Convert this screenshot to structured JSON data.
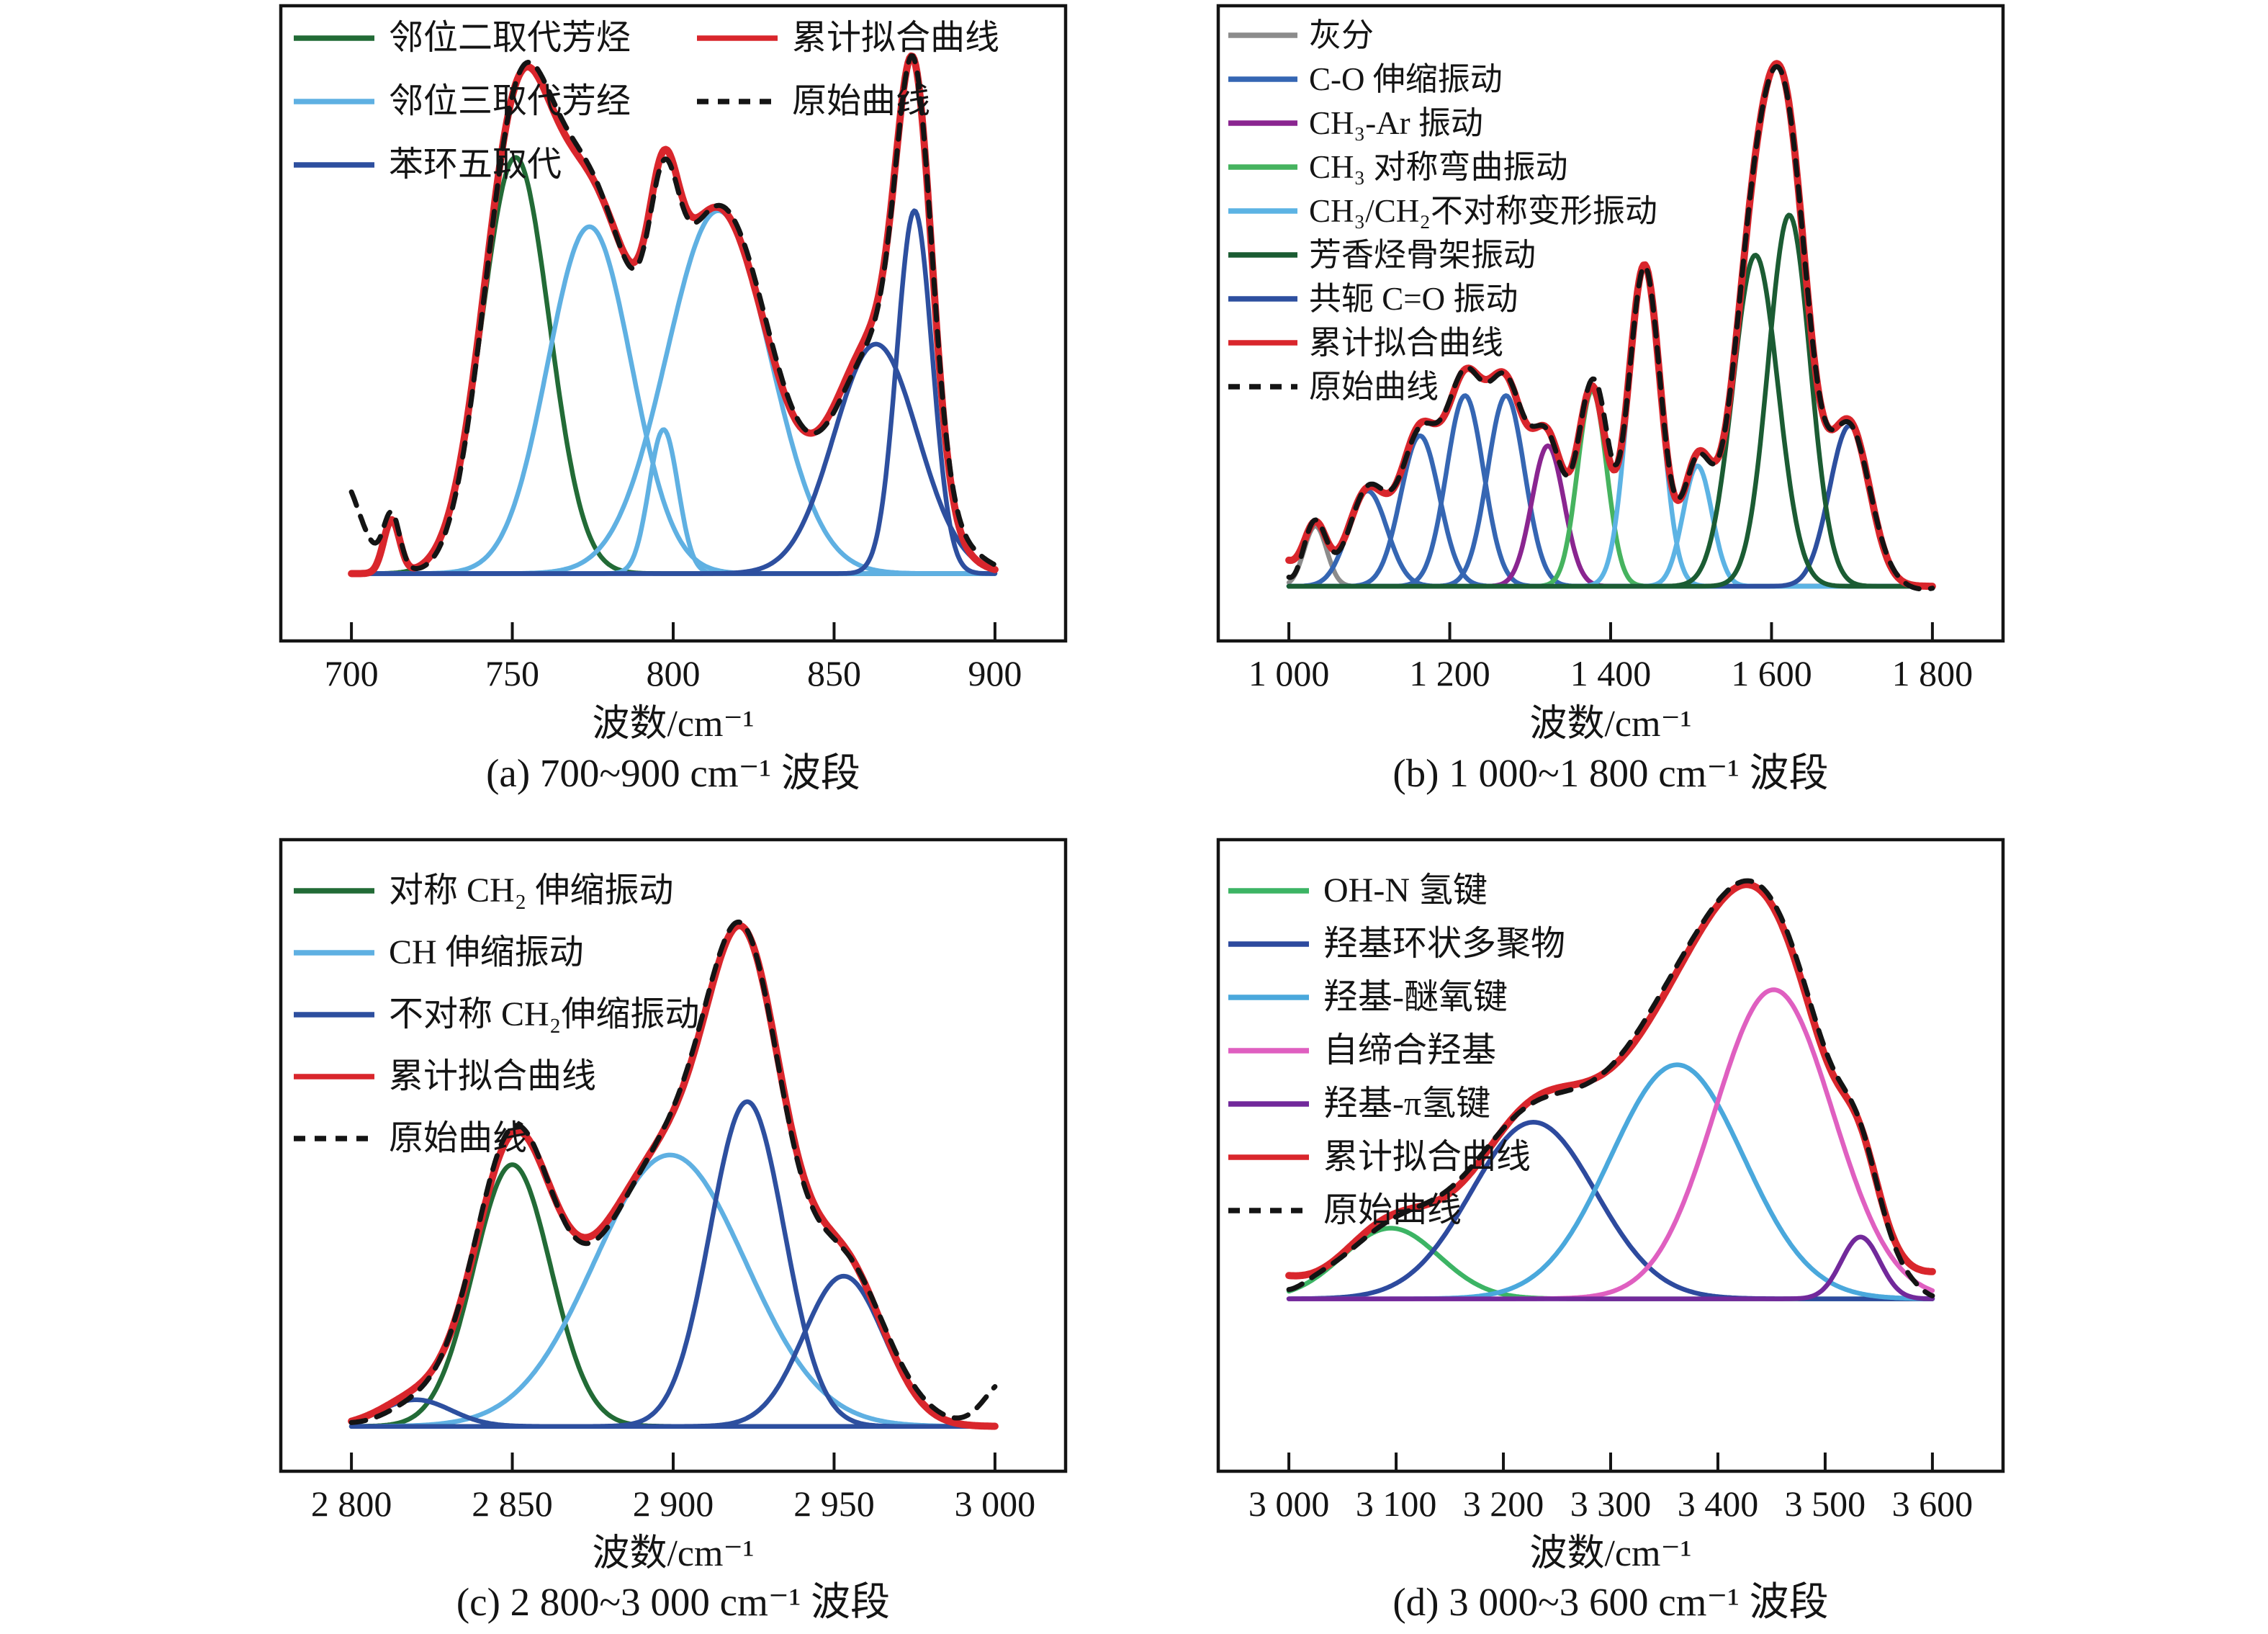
{
  "figure": {
    "background": "#ffffff",
    "description": "FTIR 分峰拟合曲线四联图"
  },
  "chart_data": [
    {
      "id": "a",
      "type": "line",
      "caption": "(a) 700~900 cm⁻¹ 波段",
      "xlabel": "波数/cm⁻¹",
      "xmin": 700,
      "xmax": 900,
      "ticks": [
        700,
        750,
        800,
        850,
        900
      ],
      "tick_labels": [
        "700",
        "750",
        "800",
        "850",
        "900"
      ],
      "grid": false,
      "legend_position": "top-left",
      "colors": {
        "fit": "#d9262c",
        "original": "#141414"
      },
      "legend": [
        {
          "label": "邻位二取代芳烃",
          "color": "#226b36",
          "dash": false
        },
        {
          "label": "邻位三取代芳经",
          "color": "#5fb0e2",
          "dash": false
        },
        {
          "label": "苯环五取代",
          "color": "#2d4f9f",
          "dash": false
        },
        {
          "label": "累计拟合曲线",
          "color": "#d9262c",
          "dash": false
        },
        {
          "label": "原始曲线",
          "color": "#141414",
          "dash": true
        }
      ],
      "peaks": [
        {
          "series": "邻位二取代芳烃",
          "color": "#226b36",
          "center": 751,
          "amplitude": 0.78,
          "sigma": 10.5
        },
        {
          "series": "邻位三取代芳经",
          "color": "#5fb0e2",
          "center": 774,
          "amplitude": 0.65,
          "sigma": 13
        },
        {
          "series": "邻位三取代芳经",
          "color": "#5fb0e2",
          "center": 797,
          "amplitude": 0.27,
          "sigma": 4.5
        },
        {
          "series": "邻位三取代芳经",
          "color": "#5fb0e2",
          "center": 814,
          "amplitude": 0.68,
          "sigma": 16
        },
        {
          "series": "苯环五取代",
          "color": "#2d4f9f",
          "center": 863,
          "amplitude": 0.43,
          "sigma": 13
        },
        {
          "series": "苯环五取代",
          "color": "#2d4f9f",
          "center": 875,
          "amplitude": 0.68,
          "sigma": 5.5
        }
      ],
      "fit_extra_peaks": [
        {
          "center": 712.5,
          "amplitude": 0.1,
          "sigma": 2.5
        }
      ],
      "original_extra_peaks": [
        {
          "center": 696,
          "amplitude": 0.17,
          "sigma": 6
        }
      ],
      "original_wiggle": {
        "amplitude": 0.018,
        "period": 62,
        "phase": 750
      }
    },
    {
      "id": "b",
      "type": "line",
      "caption": "(b) 1 000~1 800 cm⁻¹ 波段",
      "xlabel": "波数/cm⁻¹",
      "xmin": 1000,
      "xmax": 1800,
      "ticks": [
        1000,
        1200,
        1400,
        1600,
        1800
      ],
      "tick_labels": [
        "1 000",
        "1 200",
        "1 400",
        "1 600",
        "1 800"
      ],
      "grid": false,
      "legend_position": "top-left",
      "colors": {
        "fit": "#d9262c",
        "original": "#141414"
      },
      "legend": [
        {
          "label": "灰分",
          "color": "#8c8c8c",
          "dash": false
        },
        {
          "label": "C-O 伸缩振动",
          "color": "#3566b3",
          "dash": false
        },
        {
          "label": "CH₃-Ar 振动",
          "color": "#8a2590",
          "dash": false
        },
        {
          "label": "CH₃ 对称弯曲振动",
          "color": "#46b35f",
          "dash": false
        },
        {
          "label": "CH₃/CH₂不对称变形振动",
          "color": "#5cb3e4",
          "dash": false
        },
        {
          "label": "芳香烃骨架振动",
          "color": "#1b5c33",
          "dash": false
        },
        {
          "label": "共轭 C=O 振动",
          "color": "#2d4f9f",
          "dash": false
        },
        {
          "label": "累计拟合曲线",
          "color": "#d9262c",
          "dash": false
        },
        {
          "label": "原始曲线",
          "color": "#141414",
          "dash": true
        }
      ],
      "peaks": [
        {
          "series": "灰分",
          "color": "#8c8c8c",
          "center": 1033,
          "amplitude": 0.12,
          "sigma": 14
        },
        {
          "series": "C-O 伸缩振动",
          "color": "#3566b3",
          "center": 1098,
          "amplitude": 0.19,
          "sigma": 24
        },
        {
          "series": "C-O 伸缩振动",
          "color": "#3566b3",
          "center": 1163,
          "amplitude": 0.3,
          "sigma": 24
        },
        {
          "series": "C-O 伸缩振动",
          "color": "#3566b3",
          "center": 1219,
          "amplitude": 0.38,
          "sigma": 23
        },
        {
          "series": "C-O 伸缩振动",
          "color": "#3566b3",
          "center": 1270,
          "amplitude": 0.38,
          "sigma": 23
        },
        {
          "series": "CH₃-Ar 振动",
          "color": "#8a2590",
          "center": 1322,
          "amplitude": 0.28,
          "sigma": 20
        },
        {
          "series": "CH₃ 对称弯曲振动",
          "color": "#46b35f",
          "center": 1377,
          "amplitude": 0.39,
          "sigma": 18
        },
        {
          "series": "CH₃/CH₂不对称变形振动",
          "color": "#5cb3e4",
          "center": 1442,
          "amplitude": 0.64,
          "sigma": 20
        },
        {
          "series": "CH₃/CH₂不对称变形振动",
          "color": "#5cb3e4",
          "center": 1508,
          "amplitude": 0.24,
          "sigma": 18
        },
        {
          "series": "共轭 C=O 振动",
          "color": "#2d4f9f",
          "center": 1697,
          "amplitude": 0.32,
          "sigma": 25
        },
        {
          "series": "芳香烃骨架振动",
          "color": "#1b5c33",
          "center": 1580,
          "amplitude": 0.66,
          "sigma": 28
        },
        {
          "series": "芳香烃骨架振动",
          "color": "#1b5c33",
          "center": 1622,
          "amplitude": 0.74,
          "sigma": 26
        }
      ],
      "fit_extra_peaks": [
        {
          "center": 983,
          "amplitude": 0.06,
          "sigma": 22
        }
      ],
      "original_extra_peaks": [
        {
          "center": 1392,
          "amplitude": 0.03,
          "sigma": 9
        },
        {
          "center": 1003,
          "amplitude": -0.035,
          "sigma": 12
        }
      ],
      "original_wiggle": {
        "amplitude": 0.006,
        "period": 90,
        "phase": 1000
      }
    },
    {
      "id": "c",
      "type": "line",
      "caption": "(c) 2 800~3 000 cm⁻¹ 波段",
      "xlabel": "波数/cm⁻¹",
      "xmin": 2800,
      "xmax": 3000,
      "ticks": [
        2800,
        2850,
        2900,
        2950,
        3000
      ],
      "tick_labels": [
        "2 800",
        "2 850",
        "2 900",
        "2 950",
        "3 000"
      ],
      "grid": false,
      "legend_position": "top-left",
      "colors": {
        "fit": "#d9262c",
        "original": "#141414"
      },
      "legend": [
        {
          "label": "对称 CH₂ 伸缩振动",
          "color": "#226b36",
          "dash": false
        },
        {
          "label": "CH 伸缩振动",
          "color": "#5fb0e2",
          "dash": false
        },
        {
          "label": "不对称 CH₂伸缩振动",
          "color": "#2d4f9f",
          "dash": false
        },
        {
          "label": "累计拟合曲线",
          "color": "#d9262c",
          "dash": false
        },
        {
          "label": "原始曲线",
          "color": "#141414",
          "dash": true
        }
      ],
      "peaks": [
        {
          "series": "对称 CH₂ 伸缩振动",
          "color": "#226b36",
          "center": 2850,
          "amplitude": 0.54,
          "sigma": 12
        },
        {
          "series": "CH 伸缩振动",
          "color": "#5fb0e2",
          "center": 2899,
          "amplitude": 0.56,
          "sigma": 23.5
        },
        {
          "series": "不对称 CH₂伸缩振动",
          "color": "#2d4f9f",
          "center": 2820,
          "amplitude": 0.055,
          "sigma": 11
        },
        {
          "series": "不对称 CH₂伸缩振动",
          "color": "#2d4f9f",
          "center": 2923,
          "amplitude": 0.67,
          "sigma": 11.5
        },
        {
          "series": "不对称 CH₂伸缩振动",
          "color": "#2d4f9f",
          "center": 2953,
          "amplitude": 0.31,
          "sigma": 12.5
        }
      ],
      "fit_extra_peaks": [],
      "original_extra_peaks": [
        {
          "center": 3004,
          "amplitude": 0.11,
          "sigma": 7
        }
      ],
      "original_wiggle": {
        "amplitude": 0.014,
        "period": 64,
        "phase": 2830
      }
    },
    {
      "id": "d",
      "type": "line",
      "caption": "(d) 3 000~3 600 cm⁻¹ 波段",
      "xlabel": "波数/cm⁻¹",
      "xmin": 3000,
      "xmax": 3600,
      "ticks": [
        3000,
        3100,
        3200,
        3300,
        3400,
        3500,
        3600
      ],
      "tick_labels": [
        "3 000",
        "3 100",
        "3 200",
        "3 300",
        "3 400",
        "3 500",
        "3 600"
      ],
      "grid": false,
      "legend_position": "top-left",
      "colors": {
        "fit": "#d9262c",
        "original": "#141414"
      },
      "legend": [
        {
          "label": "OH-N 氢键",
          "color": "#3cb464",
          "dash": false
        },
        {
          "label": "羟基环状多聚物",
          "color": "#2d4a9e",
          "dash": false
        },
        {
          "label": "羟基-醚氧键",
          "color": "#4aa8dc",
          "dash": false
        },
        {
          "label": "自缔合羟基",
          "color": "#df5fc0",
          "dash": false
        },
        {
          "label": "羟基-π氢键",
          "color": "#72299b",
          "dash": false
        },
        {
          "label": "累计拟合曲线",
          "color": "#d9262c",
          "dash": false
        },
        {
          "label": "原始曲线",
          "color": "#141414",
          "dash": true
        }
      ],
      "peaks": [
        {
          "series": "OH-N 氢键",
          "color": "#3cb464",
          "center": 3095,
          "amplitude": 0.16,
          "sigma": 45
        },
        {
          "series": "羟基环状多聚物",
          "color": "#2d4a9e",
          "center": 3228,
          "amplitude": 0.4,
          "sigma": 58
        },
        {
          "series": "羟基-醚氧键",
          "color": "#4aa8dc",
          "center": 3362,
          "amplitude": 0.53,
          "sigma": 62
        },
        {
          "series": "自缔合羟基",
          "color": "#df5fc0",
          "center": 3452,
          "amplitude": 0.7,
          "sigma": 55
        },
        {
          "series": "羟基-π氢键",
          "color": "#72299b",
          "center": 3533,
          "amplitude": 0.14,
          "sigma": 18
        }
      ],
      "fit_extra_peaks": [
        {
          "center": 2975,
          "amplitude": 0.05,
          "sigma": 30
        },
        {
          "center": 3645,
          "amplitude": 0.07,
          "sigma": 45
        }
      ],
      "original_extra_peaks": [
        {
          "center": 2995,
          "amplitude": -0.045,
          "sigma": 18
        },
        {
          "center": 3420,
          "amplitude": 0.02,
          "sigma": 45
        },
        {
          "center": 3610,
          "amplitude": -0.05,
          "sigma": 20
        }
      ],
      "original_wiggle": {
        "amplitude": 0.012,
        "period": 170,
        "phase": 3120
      }
    }
  ]
}
